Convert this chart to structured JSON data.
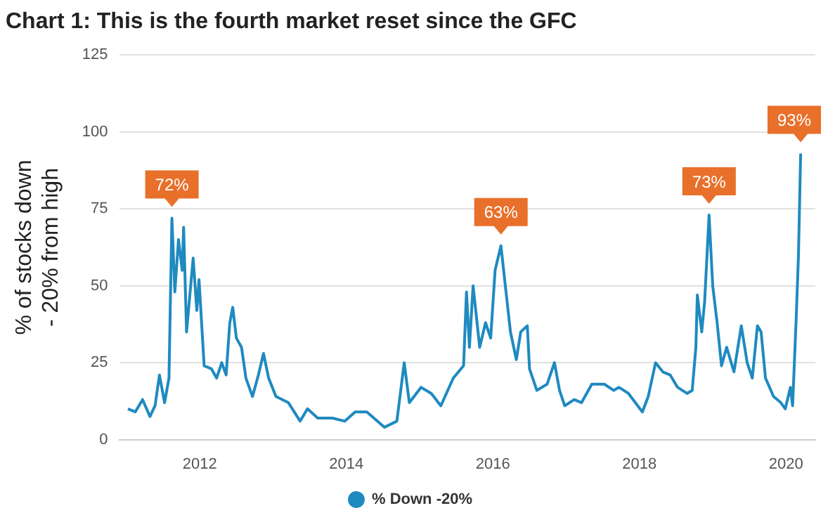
{
  "chart_data": {
    "type": "line",
    "title": "Chart 1: This is the fourth market reset since the GFC",
    "ylabel": "% of stocks down - 20% from high",
    "xlim": [
      2010.9,
      2020.4
    ],
    "xticks": [
      2012,
      2014,
      2016,
      2018,
      2020
    ],
    "ylim": [
      0,
      125
    ],
    "yticks": [
      0,
      25,
      50,
      75,
      100,
      125
    ],
    "grid": "y",
    "legend": "bottom",
    "marker": "none",
    "line_style": "solid",
    "series": [
      {
        "name": "% Down -20%",
        "color": "#1f8ac0",
        "x": [
          2011.02,
          2011.12,
          2011.22,
          2011.32,
          2011.39,
          2011.45,
          2011.52,
          2011.58,
          2011.62,
          2011.66,
          2011.71,
          2011.76,
          2011.78,
          2011.82,
          2011.91,
          2011.96,
          2011.99,
          2012.06,
          2012.16,
          2012.23,
          2012.3,
          2012.36,
          2012.41,
          2012.45,
          2012.5,
          2012.57,
          2012.63,
          2012.72,
          2012.8,
          2012.87,
          2012.94,
          2013.04,
          2013.21,
          2013.37,
          2013.47,
          2013.61,
          2013.81,
          2013.98,
          2014.12,
          2014.28,
          2014.52,
          2014.69,
          2014.79,
          2014.86,
          2015.02,
          2015.16,
          2015.29,
          2015.46,
          2015.6,
          2015.64,
          2015.68,
          2015.73,
          2015.82,
          2015.9,
          2015.97,
          2016.03,
          2016.11,
          2016.17,
          2016.24,
          2016.32,
          2016.38,
          2016.47,
          2016.5,
          2016.6,
          2016.74,
          2016.84,
          2016.91,
          2016.98,
          2017.11,
          2017.21,
          2017.35,
          2017.52,
          2017.65,
          2017.72,
          2017.85,
          2018.04,
          2018.12,
          2018.22,
          2018.32,
          2018.42,
          2018.52,
          2018.65,
          2018.72,
          2018.77,
          2018.79,
          2018.85,
          2018.89,
          2018.95,
          2019.0,
          2019.06,
          2019.12,
          2019.19,
          2019.29,
          2019.39,
          2019.47,
          2019.54,
          2019.61,
          2019.66,
          2019.72,
          2019.83,
          2019.93,
          2019.99,
          2020.06,
          2020.09,
          2020.14,
          2020.17,
          2020.2
        ],
        "values": [
          10,
          9,
          13,
          7.5,
          11,
          21,
          12,
          20,
          72,
          48,
          65,
          55,
          69,
          35,
          59,
          42,
          52,
          24,
          23,
          20,
          25,
          21,
          38,
          43,
          33,
          30,
          20,
          14,
          21,
          28,
          20,
          14,
          12,
          6,
          10,
          7,
          7,
          6,
          9,
          9,
          4,
          6,
          25,
          12,
          17,
          15,
          11,
          20,
          24,
          48,
          30,
          50,
          30,
          38,
          33,
          55,
          63,
          50,
          35,
          26,
          35,
          37,
          23,
          16,
          18,
          25,
          16,
          11,
          13,
          12,
          18,
          18,
          16,
          17,
          15,
          9,
          14,
          25,
          22,
          21,
          17,
          15,
          16,
          30,
          47,
          35,
          45,
          73,
          50,
          38,
          24,
          30,
          22,
          37,
          25,
          20,
          37,
          35,
          20,
          14,
          12,
          10,
          17,
          11,
          40,
          60,
          93
        ]
      }
    ],
    "annotations": [
      {
        "text": "72%",
        "x": 2011.62,
        "y": 72
      },
      {
        "text": "63%",
        "x": 2016.11,
        "y": 63
      },
      {
        "text": "73%",
        "x": 2018.95,
        "y": 73
      },
      {
        "text": "93%",
        "x": 2020.2,
        "y": 93
      }
    ]
  }
}
